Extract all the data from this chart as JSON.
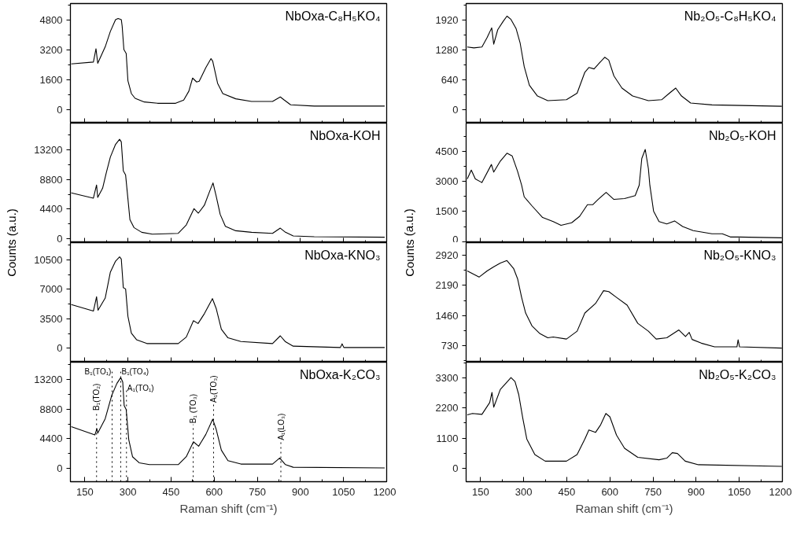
{
  "chart_data": [
    {
      "type": "line",
      "title": "NbOxa-C₈H₅KO₄",
      "xlim": [
        100,
        1200
      ],
      "ylim": [
        -700,
        5700
      ],
      "xticks": [
        150,
        300,
        450,
        600,
        750,
        900,
        1050,
        1200
      ],
      "yticks": [
        0,
        1600,
        3200,
        4800
      ],
      "tick_labels": "y",
      "x": [
        103,
        180,
        189,
        195,
        221,
        239,
        257,
        266,
        277,
        280,
        286,
        294,
        300,
        312,
        325,
        357,
        403,
        466,
        494,
        512,
        525,
        539,
        548,
        571,
        589,
        595,
        612,
        630,
        675,
        730,
        803,
        830,
        844,
        866,
        948,
        1193
      ],
      "series": [
        {
          "color": "#000000",
          "values": [
            2470,
            2570,
            3280,
            2500,
            3380,
            4210,
            4840,
            4900,
            4840,
            4490,
            3240,
            3030,
            1570,
            880,
            625,
            430,
            360,
            360,
            530,
            1010,
            1710,
            1500,
            1540,
            2270,
            2750,
            2610,
            1430,
            880,
            600,
            460,
            460,
            700,
            530,
            280,
            210,
            210
          ]
        }
      ]
    },
    {
      "type": "line",
      "title": "NbOxa-KOH",
      "ylabel": "Counts (a.u.)",
      "xlim": [
        100,
        1200
      ],
      "ylim": [
        -600,
        17200
      ],
      "xticks": [
        150,
        300,
        450,
        600,
        750,
        900,
        1050,
        1200
      ],
      "yticks": [
        0,
        4400,
        8800,
        13200
      ],
      "tick_labels": "y",
      "x": [
        103,
        180,
        191,
        195,
        212,
        225,
        239,
        257,
        271,
        277,
        284,
        292,
        300,
        307,
        321,
        348,
        385,
        475,
        503,
        530,
        545,
        566,
        585,
        596,
        607,
        621,
        639,
        675,
        730,
        803,
        830,
        848,
        875,
        948,
        1193
      ],
      "series": [
        {
          "color": "#000000",
          "values": [
            6800,
            6020,
            7980,
            6140,
            7500,
            9850,
            12150,
            14030,
            14780,
            14400,
            10080,
            9460,
            5940,
            2820,
            1640,
            940,
            660,
            780,
            2030,
            4460,
            3790,
            4970,
            7120,
            8290,
            6330,
            3600,
            1840,
            1170,
            940,
            780,
            1560,
            940,
            390,
            270,
            200
          ]
        }
      ]
    },
    {
      "type": "line",
      "title": "NbOxa-KNO₃",
      "xlim": [
        100,
        1200
      ],
      "ylim": [
        -1650,
        12550
      ],
      "xticks": [
        150,
        300,
        450,
        600,
        750,
        900,
        1050,
        1200
      ],
      "yticks": [
        0,
        3500,
        7000,
        10500
      ],
      "tick_labels": "y",
      "x": [
        103,
        180,
        191,
        196,
        221,
        239,
        257,
        271,
        277,
        284,
        292,
        300,
        312,
        330,
        366,
        475,
        503,
        528,
        544,
        566,
        594,
        607,
        625,
        648,
        693,
        803,
        830,
        848,
        875,
        1039,
        1045,
        1051,
        1193
      ],
      "series": [
        {
          "color": "#000000",
          "values": [
            5190,
            4420,
            6120,
            4510,
            5960,
            9050,
            10350,
            10850,
            10600,
            7200,
            7050,
            3800,
            1790,
            1020,
            560,
            560,
            1330,
            3280,
            2940,
            4110,
            5900,
            4730,
            2260,
            1240,
            800,
            560,
            1480,
            770,
            250,
            90,
            530,
            90,
            90
          ]
        }
      ]
    },
    {
      "type": "line",
      "title": "NbOxa-K₂CO₃",
      "xlabel": "Raman shift (cm⁻¹)",
      "xlim": [
        100,
        1200
      ],
      "ylim": [
        -1950,
        15750
      ],
      "xticks": [
        150,
        300,
        450,
        600,
        750,
        900,
        1050,
        1200
      ],
      "yticks": [
        0,
        4400,
        8800,
        13200
      ],
      "x": [
        103,
        185,
        192,
        195,
        221,
        244,
        262,
        275,
        282,
        287,
        294,
        303,
        316,
        339,
        375,
        475,
        503,
        528,
        546,
        571,
        595,
        607,
        625,
        648,
        693,
        803,
        828,
        848,
        875,
        1193
      ],
      "series": [
        {
          "color": "#000000",
          "values": [
            6210,
            4970,
            5900,
            5240,
            7380,
            10870,
            12620,
            13470,
            12810,
            9320,
            8740,
            4270,
            1750,
            850,
            580,
            580,
            1750,
            3960,
            3300,
            5050,
            7300,
            5820,
            2720,
            1160,
            660,
            660,
            1550,
            580,
            190,
            80
          ]
        }
      ],
      "ref_lines": [
        {
          "axis": "x",
          "value": 191,
          "label": "B₁(TO₂)",
          "color": "#000000",
          "line_style": "dotted"
        },
        {
          "axis": "x",
          "value": 245,
          "label": "B₁(TO₁)",
          "color": "#000000",
          "line_style": "dotted"
        },
        {
          "axis": "x",
          "value": 275,
          "label": "B₁(TO₄)",
          "color": "#000000",
          "line_style": "dotted"
        },
        {
          "axis": "x",
          "value": 295,
          "label": "A₁(TO₁)",
          "color": "#000000",
          "line_style": "dotted"
        },
        {
          "axis": "x",
          "value": 527,
          "label": "B₁ (TO₃)",
          "color": "#000000",
          "line_style": "dotted"
        },
        {
          "axis": "x",
          "value": 598,
          "label": "A₁(TO₃)",
          "color": "#000000",
          "line_style": "dotted"
        },
        {
          "axis": "x",
          "value": 832,
          "label": "A₁(LO₃)",
          "color": "#000000",
          "line_style": "dotted"
        }
      ]
    },
    {
      "type": "line",
      "title": "Nb₂O₅-C₈H₅KO₄",
      "xlim": [
        100,
        1200
      ],
      "ylim": [
        -290,
        2270
      ],
      "xticks": [
        150,
        300,
        450,
        600,
        750,
        900,
        1050,
        1200
      ],
      "yticks": [
        0,
        640,
        1280,
        1920
      ],
      "tick_labels": "y",
      "x": [
        104,
        127,
        155,
        173,
        189,
        196,
        210,
        228,
        242,
        256,
        274,
        288,
        302,
        320,
        348,
        384,
        449,
        486,
        513,
        527,
        545,
        564,
        582,
        596,
        614,
        642,
        679,
        734,
        780,
        807,
        829,
        849,
        881,
        955,
        1198
      ],
      "series": [
        {
          "color": "#000000",
          "values": [
            1340,
            1320,
            1340,
            1540,
            1750,
            1400,
            1710,
            1880,
            2000,
            1930,
            1730,
            1420,
            920,
            520,
            290,
            190,
            210,
            350,
            800,
            900,
            870,
            1000,
            1120,
            1060,
            720,
            460,
            290,
            190,
            210,
            350,
            460,
            290,
            140,
            100,
            70
          ]
        }
      ]
    },
    {
      "type": "line",
      "title": "Nb₂O₅-KOH",
      "ylabel": "Counts (a.u.)",
      "xlim": [
        100,
        1200
      ],
      "ylim": [
        -50,
        5900
      ],
      "xticks": [
        150,
        300,
        450,
        600,
        750,
        900,
        1050,
        1200
      ],
      "yticks": [
        0,
        1500,
        3000,
        4500
      ],
      "tick_labels": "y",
      "x": [
        104,
        118,
        132,
        155,
        188,
        196,
        219,
        242,
        260,
        279,
        293,
        302,
        329,
        366,
        403,
        430,
        467,
        495,
        522,
        541,
        559,
        587,
        614,
        651,
        688,
        702,
        711,
        723,
        734,
        739,
        752,
        771,
        798,
        825,
        853,
        890,
        955,
        991,
        1019,
        1046,
        1198
      ],
      "series": [
        {
          "color": "#000000",
          "values": [
            3120,
            3560,
            3120,
            2940,
            3840,
            3460,
            4010,
            4400,
            4270,
            3500,
            2810,
            2230,
            1780,
            1200,
            1000,
            810,
            940,
            1260,
            1840,
            1840,
            2100,
            2450,
            2100,
            2140,
            2290,
            2810,
            4140,
            4590,
            3630,
            2810,
            1520,
            1000,
            880,
            1030,
            750,
            550,
            390,
            390,
            230,
            230,
            190
          ]
        }
      ]
    },
    {
      "type": "line",
      "title": "Nb₂O₅-KNO₃",
      "xlim": [
        100,
        1200
      ],
      "ylim": [
        330,
        3225
      ],
      "xticks": [
        150,
        300,
        450,
        600,
        750,
        900,
        1050,
        1200
      ],
      "yticks": [
        730,
        1460,
        2190,
        2920
      ],
      "tick_labels": "y",
      "x": [
        104,
        145,
        173,
        196,
        219,
        242,
        265,
        279,
        293,
        307,
        329,
        357,
        384,
        403,
        449,
        486,
        513,
        550,
        578,
        596,
        623,
        660,
        697,
        734,
        761,
        798,
        840,
        863,
        876,
        886,
        918,
        964,
        1042,
        1046,
        1051,
        1198
      ],
      "series": [
        {
          "color": "#000000",
          "values": [
            2540,
            2390,
            2540,
            2640,
            2730,
            2790,
            2600,
            2350,
            1900,
            1520,
            1210,
            1020,
            920,
            940,
            890,
            1080,
            1520,
            1750,
            2060,
            2040,
            1900,
            1710,
            1270,
            1080,
            890,
            920,
            1110,
            950,
            1050,
            880,
            790,
            700,
            700,
            870,
            700,
            670
          ]
        }
      ]
    },
    {
      "type": "line",
      "title": "Nb₂O₅-K₂CO₃",
      "xlabel": "Raman shift (cm⁻¹)",
      "xlim": [
        100,
        1200
      ],
      "ylim": [
        -490,
        3875
      ],
      "xticks": [
        150,
        300,
        450,
        600,
        750,
        900,
        1050,
        1200
      ],
      "yticks": [
        0,
        1100,
        2200,
        3300
      ],
      "x": [
        104,
        122,
        155,
        182,
        190,
        196,
        219,
        237,
        256,
        270,
        283,
        297,
        311,
        339,
        375,
        449,
        486,
        513,
        527,
        550,
        568,
        586,
        600,
        623,
        651,
        697,
        771,
        798,
        817,
        835,
        862,
        908,
        1198
      ],
      "series": [
        {
          "color": "#000000",
          "values": [
            1950,
            2000,
            1970,
            2400,
            2770,
            2230,
            2880,
            3090,
            3310,
            3170,
            2690,
            1830,
            1070,
            500,
            260,
            260,
            500,
            1070,
            1400,
            1310,
            1590,
            2000,
            1880,
            1210,
            730,
            400,
            310,
            370,
            570,
            540,
            260,
            130,
            70
          ]
        }
      ]
    }
  ]
}
